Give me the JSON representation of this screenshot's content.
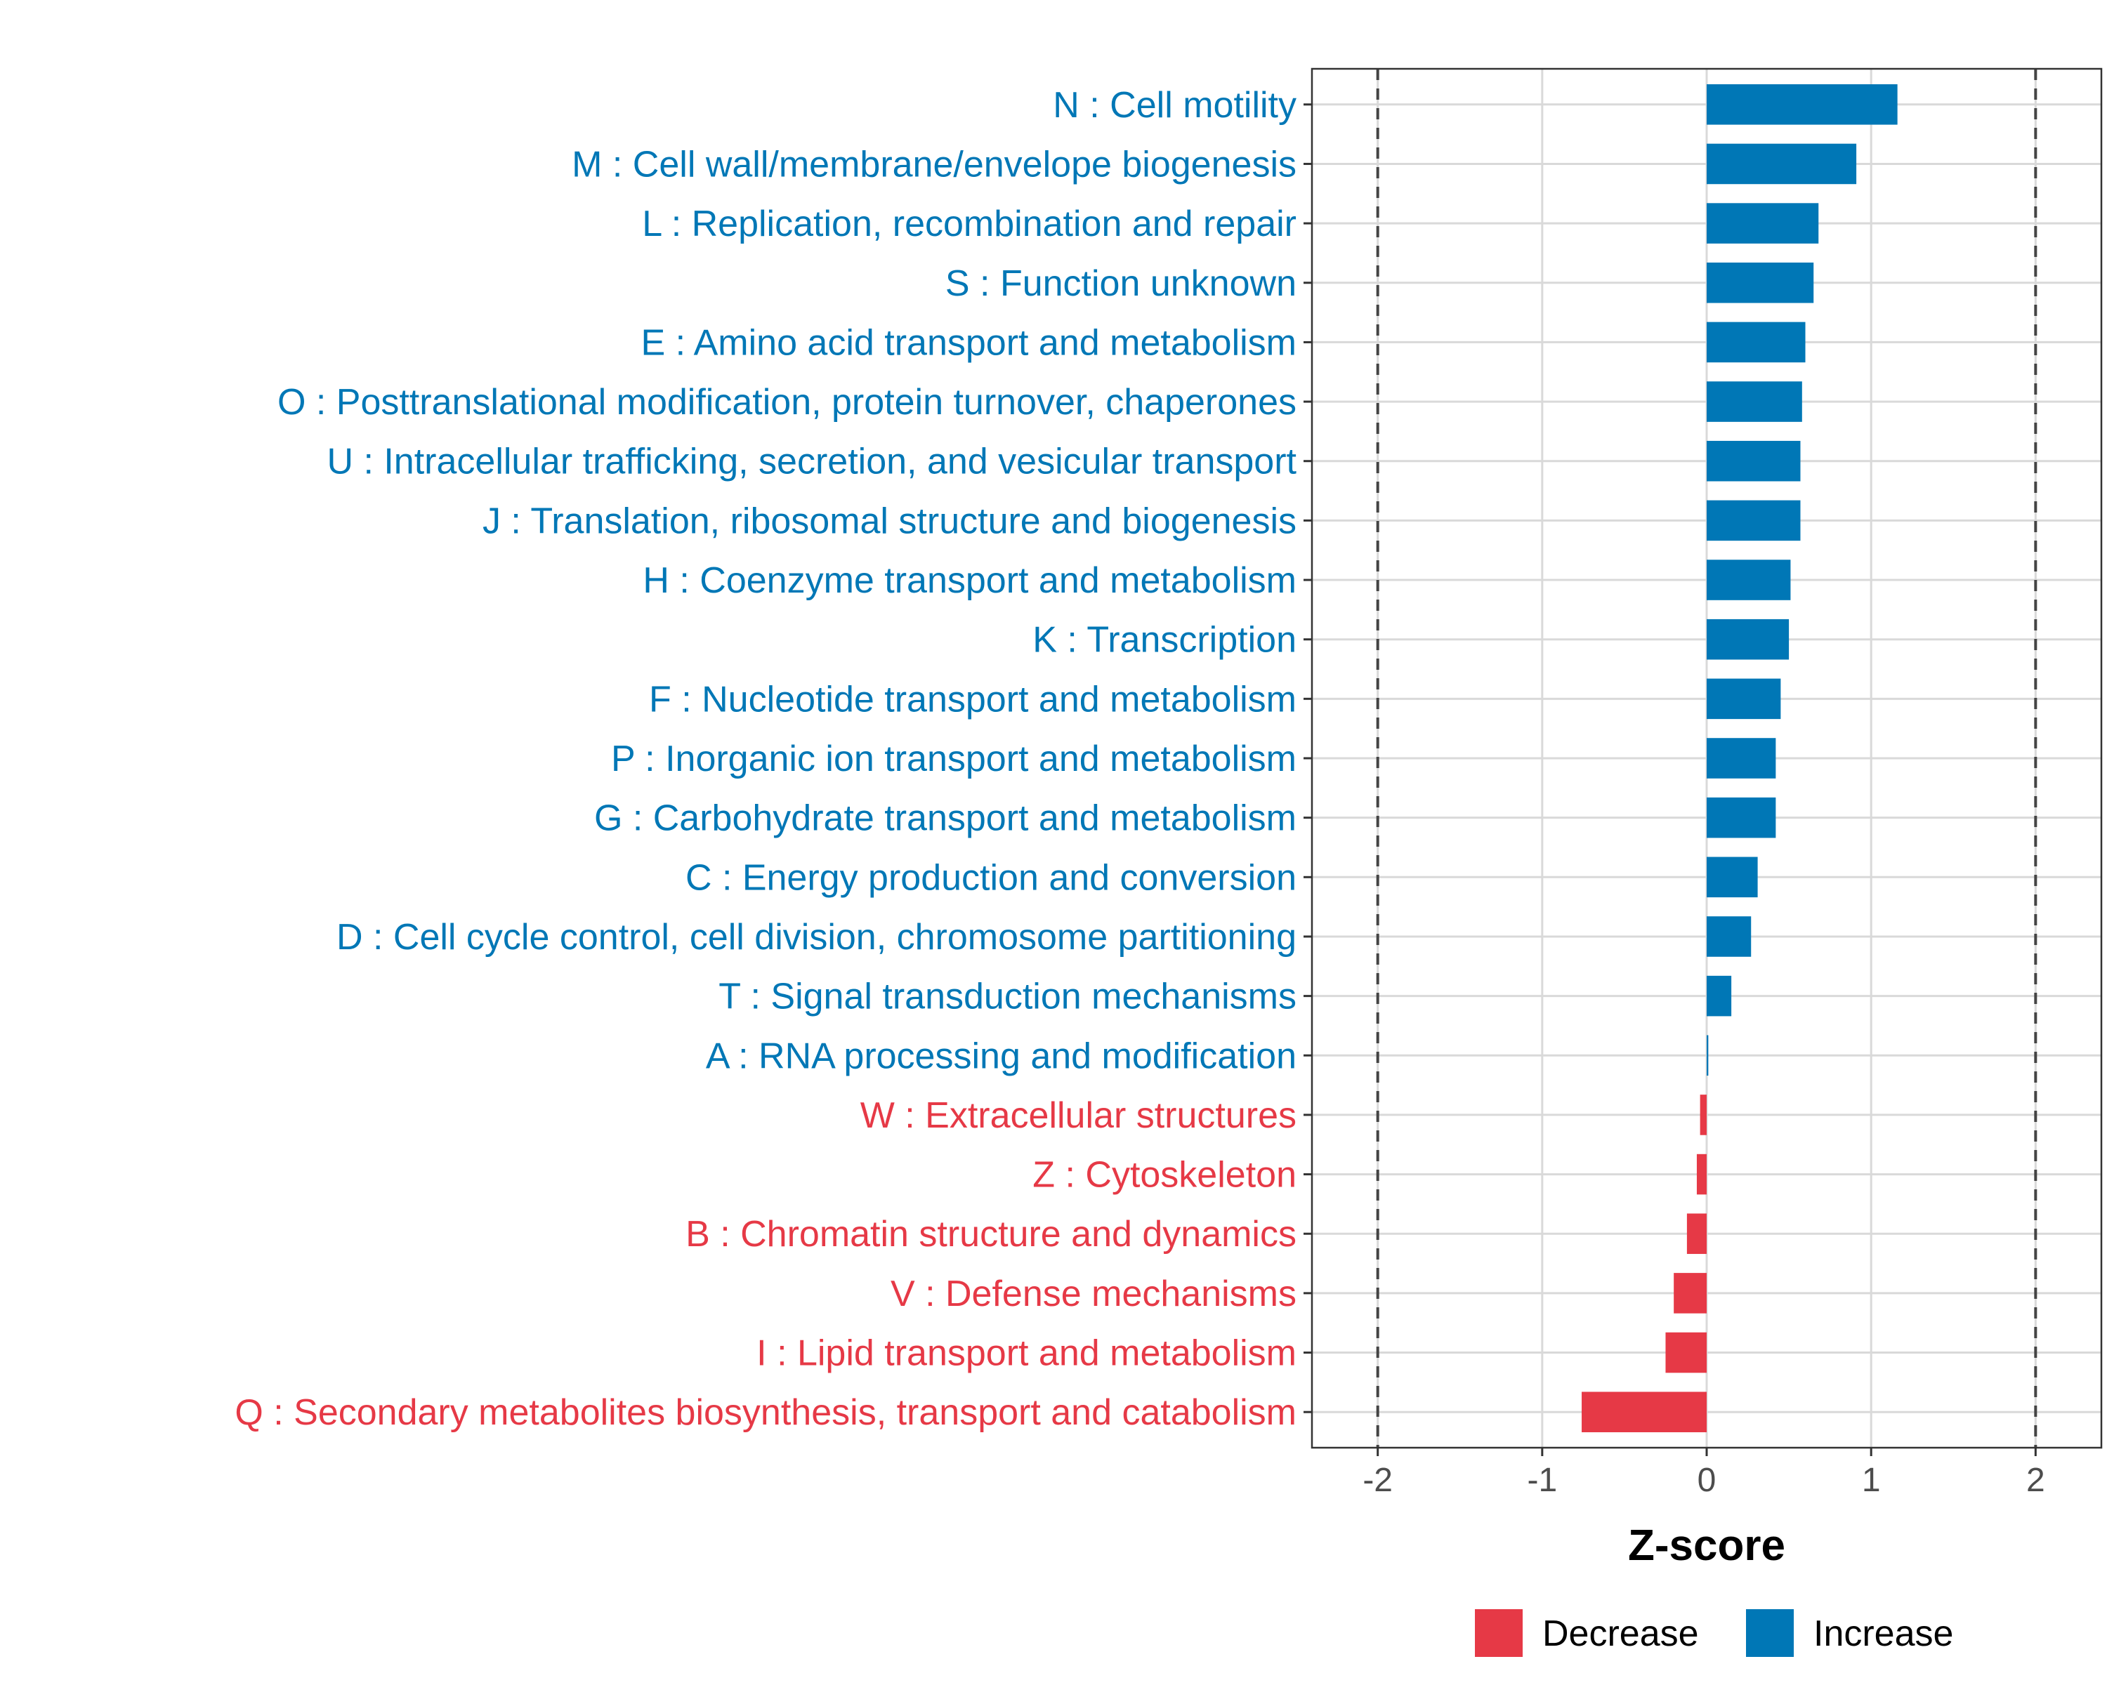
{
  "chart_data": {
    "type": "bar",
    "orientation": "horizontal",
    "xlabel": "Z-score",
    "ylabel": "",
    "xlim": [
      -2.4,
      2.4
    ],
    "x_ticks": [
      -2,
      -1,
      0,
      1,
      2
    ],
    "x_tick_labels": [
      "-2",
      "-1",
      "0",
      "1",
      "2"
    ],
    "reference_lines": [
      -2,
      2
    ],
    "grid": true,
    "legend_position": "bottom",
    "colors": {
      "Decrease": "#e63946",
      "Increase": "#0077b6"
    },
    "categories": [
      "N : Cell motility",
      "M : Cell wall/membrane/envelope biogenesis",
      "L : Replication, recombination and repair",
      "S : Function unknown",
      "E : Amino acid transport and metabolism",
      "O : Posttranslational modification, protein turnover, chaperones",
      "U : Intracellular trafficking, secretion, and vesicular transport",
      "J : Translation, ribosomal structure and biogenesis",
      "H : Coenzyme transport and metabolism",
      "K : Transcription",
      "F : Nucleotide transport and metabolism",
      "P : Inorganic ion transport and metabolism",
      "G : Carbohydrate transport and metabolism",
      "C : Energy production and conversion",
      "D : Cell cycle control, cell division, chromosome partitioning",
      "T : Signal transduction mechanisms",
      "A : RNA processing and modification",
      "W : Extracellular structures",
      "Z : Cytoskeleton",
      "B : Chromatin structure and dynamics",
      "V : Defense mechanisms",
      "I : Lipid transport and metabolism",
      "Q : Secondary metabolites biosynthesis, transport and catabolism"
    ],
    "values": [
      1.16,
      0.91,
      0.68,
      0.65,
      0.6,
      0.58,
      0.57,
      0.57,
      0.51,
      0.5,
      0.45,
      0.42,
      0.42,
      0.31,
      0.27,
      0.15,
      0.01,
      -0.04,
      -0.06,
      -0.12,
      -0.2,
      -0.25,
      -0.76
    ],
    "groups": [
      "Increase",
      "Increase",
      "Increase",
      "Increase",
      "Increase",
      "Increase",
      "Increase",
      "Increase",
      "Increase",
      "Increase",
      "Increase",
      "Increase",
      "Increase",
      "Increase",
      "Increase",
      "Increase",
      "Increase",
      "Decrease",
      "Decrease",
      "Decrease",
      "Decrease",
      "Decrease",
      "Decrease"
    ],
    "legend": [
      {
        "name": "Decrease",
        "color": "#e63946"
      },
      {
        "name": "Increase",
        "color": "#0077b6"
      }
    ]
  }
}
